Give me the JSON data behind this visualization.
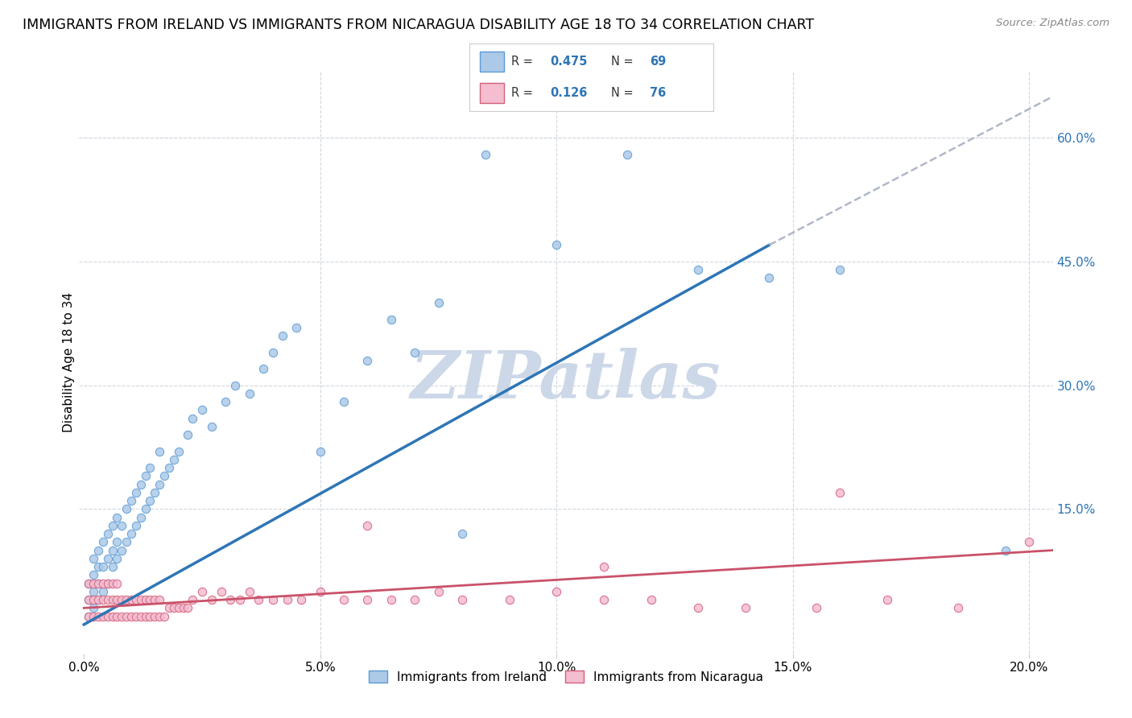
{
  "title": "IMMIGRANTS FROM IRELAND VS IMMIGRANTS FROM NICARAGUA DISABILITY AGE 18 TO 34 CORRELATION CHART",
  "source": "Source: ZipAtlas.com",
  "ylabel": "Disability Age 18 to 34",
  "y_ticks_right": [
    "60.0%",
    "45.0%",
    "30.0%",
    "15.0%"
  ],
  "y_ticks_right_vals": [
    0.6,
    0.45,
    0.3,
    0.15
  ],
  "xlim": [
    -0.001,
    0.205
  ],
  "ylim": [
    -0.025,
    0.68
  ],
  "ireland_color": "#adc9e8",
  "ireland_edge": "#5b9bd5",
  "nicaragua_color": "#f4bdd0",
  "nicaragua_edge": "#d4607a",
  "ireland_line_color": "#2e75b6",
  "nicaragua_line_color": "#c9526a",
  "trend_dashed_color": "#b0b8c8",
  "watermark_text": "ZIPatlas",
  "watermark_color": "#ccd8e8",
  "ireland_label": "Immigrants from Ireland",
  "nicaragua_label": "Immigrants from Nicaragua",
  "ireland_R": "0.475",
  "ireland_N": "69",
  "nicaragua_R": "0.126",
  "nicaragua_N": "76",
  "ireland_scatter_x": [
    0.001,
    0.001,
    0.001,
    0.002,
    0.002,
    0.002,
    0.002,
    0.003,
    0.003,
    0.003,
    0.003,
    0.004,
    0.004,
    0.004,
    0.005,
    0.005,
    0.005,
    0.006,
    0.006,
    0.006,
    0.007,
    0.007,
    0.007,
    0.008,
    0.008,
    0.009,
    0.009,
    0.01,
    0.01,
    0.011,
    0.011,
    0.012,
    0.012,
    0.013,
    0.013,
    0.014,
    0.014,
    0.015,
    0.016,
    0.016,
    0.017,
    0.018,
    0.019,
    0.02,
    0.022,
    0.023,
    0.025,
    0.027,
    0.03,
    0.032,
    0.035,
    0.038,
    0.04,
    0.042,
    0.045,
    0.05,
    0.055,
    0.06,
    0.065,
    0.07,
    0.075,
    0.08,
    0.085,
    0.1,
    0.115,
    0.13,
    0.145,
    0.16,
    0.195
  ],
  "ireland_scatter_y": [
    0.02,
    0.04,
    0.06,
    0.03,
    0.05,
    0.07,
    0.09,
    0.04,
    0.06,
    0.08,
    0.1,
    0.05,
    0.08,
    0.11,
    0.06,
    0.09,
    0.12,
    0.08,
    0.1,
    0.13,
    0.09,
    0.11,
    0.14,
    0.1,
    0.13,
    0.11,
    0.15,
    0.12,
    0.16,
    0.13,
    0.17,
    0.14,
    0.18,
    0.15,
    0.19,
    0.16,
    0.2,
    0.17,
    0.18,
    0.22,
    0.19,
    0.2,
    0.21,
    0.22,
    0.24,
    0.26,
    0.27,
    0.25,
    0.28,
    0.3,
    0.29,
    0.32,
    0.34,
    0.36,
    0.37,
    0.22,
    0.28,
    0.33,
    0.38,
    0.34,
    0.4,
    0.12,
    0.58,
    0.47,
    0.58,
    0.44,
    0.43,
    0.44,
    0.1
  ],
  "nicaragua_scatter_x": [
    0.001,
    0.001,
    0.001,
    0.002,
    0.002,
    0.002,
    0.003,
    0.003,
    0.003,
    0.004,
    0.004,
    0.004,
    0.005,
    0.005,
    0.005,
    0.006,
    0.006,
    0.006,
    0.007,
    0.007,
    0.007,
    0.008,
    0.008,
    0.009,
    0.009,
    0.01,
    0.01,
    0.011,
    0.011,
    0.012,
    0.012,
    0.013,
    0.013,
    0.014,
    0.014,
    0.015,
    0.015,
    0.016,
    0.016,
    0.017,
    0.018,
    0.019,
    0.02,
    0.021,
    0.022,
    0.023,
    0.025,
    0.027,
    0.029,
    0.031,
    0.033,
    0.035,
    0.037,
    0.04,
    0.043,
    0.046,
    0.05,
    0.055,
    0.06,
    0.065,
    0.07,
    0.075,
    0.08,
    0.09,
    0.1,
    0.11,
    0.12,
    0.13,
    0.14,
    0.155,
    0.17,
    0.185,
    0.2,
    0.06,
    0.11,
    0.16
  ],
  "nicaragua_scatter_y": [
    0.02,
    0.04,
    0.06,
    0.02,
    0.04,
    0.06,
    0.02,
    0.04,
    0.06,
    0.02,
    0.04,
    0.06,
    0.02,
    0.04,
    0.06,
    0.02,
    0.04,
    0.06,
    0.02,
    0.04,
    0.06,
    0.02,
    0.04,
    0.02,
    0.04,
    0.02,
    0.04,
    0.02,
    0.04,
    0.02,
    0.04,
    0.02,
    0.04,
    0.02,
    0.04,
    0.02,
    0.04,
    0.02,
    0.04,
    0.02,
    0.03,
    0.03,
    0.03,
    0.03,
    0.03,
    0.04,
    0.05,
    0.04,
    0.05,
    0.04,
    0.04,
    0.05,
    0.04,
    0.04,
    0.04,
    0.04,
    0.05,
    0.04,
    0.04,
    0.04,
    0.04,
    0.05,
    0.04,
    0.04,
    0.05,
    0.04,
    0.04,
    0.03,
    0.03,
    0.03,
    0.04,
    0.03,
    0.11,
    0.13,
    0.08,
    0.17
  ],
  "ireland_trend_x": [
    0.0,
    0.145
  ],
  "ireland_trend_y": [
    0.01,
    0.47
  ],
  "dashed_trend_x": [
    0.145,
    0.205
  ],
  "dashed_trend_y": [
    0.47,
    0.65
  ],
  "nicaragua_trend_x": [
    0.0,
    0.205
  ],
  "nicaragua_trend_y": [
    0.03,
    0.1
  ],
  "background_color": "#ffffff",
  "grid_color": "#d0d8e0",
  "title_fontsize": 12.5,
  "axis_label_fontsize": 11,
  "tick_fontsize": 11,
  "marker_size": 55
}
